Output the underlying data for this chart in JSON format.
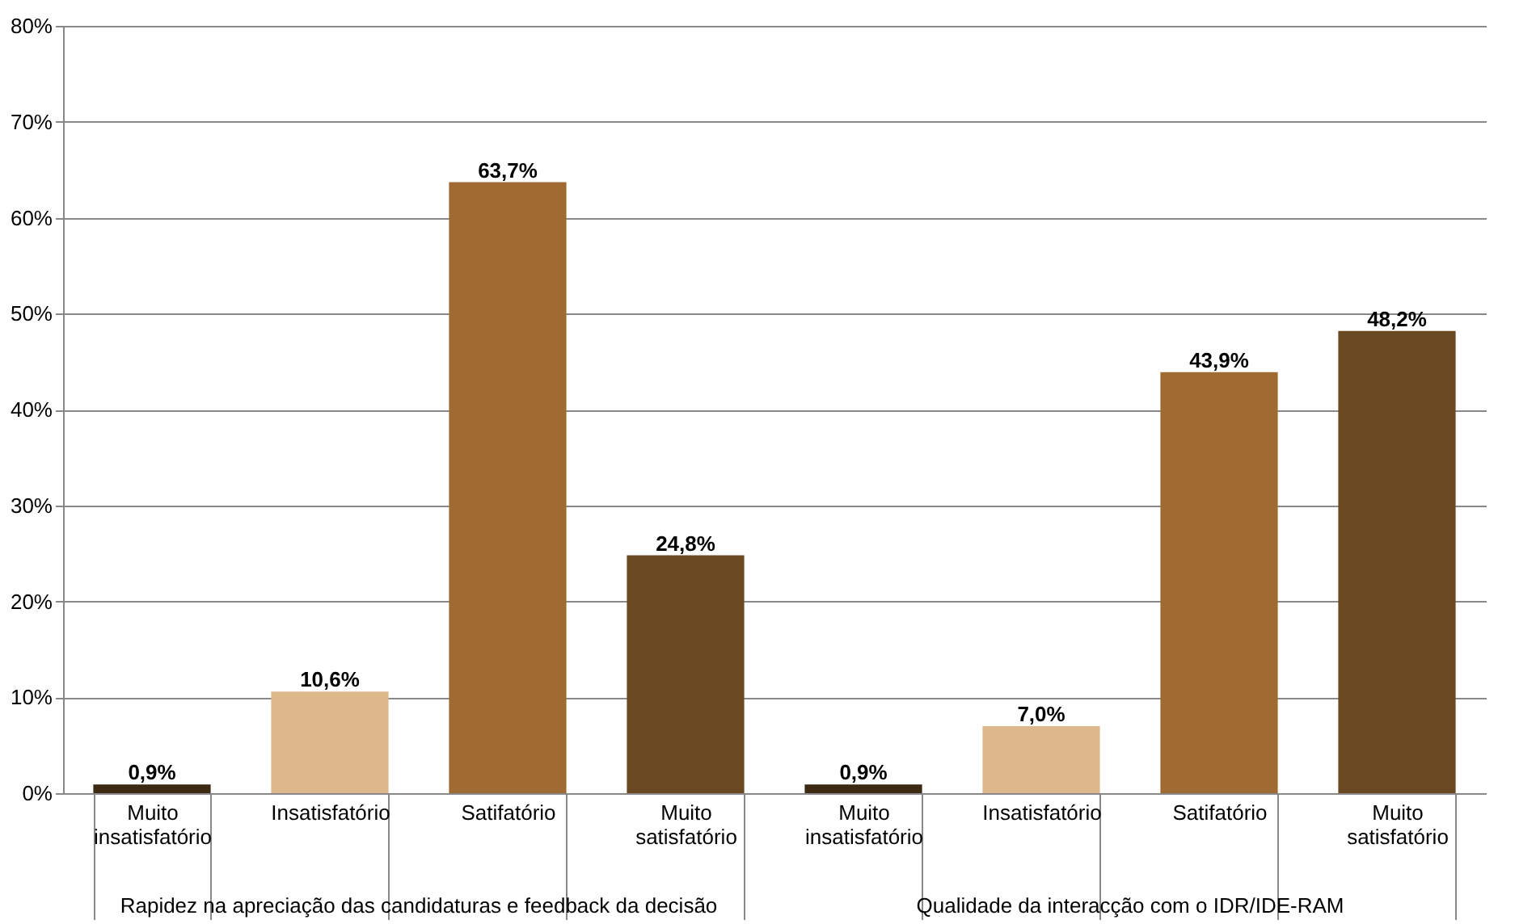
{
  "chart_data": {
    "type": "bar",
    "categories": [
      "Muito insatisfatório",
      "Insatisfatório",
      "Satifatório",
      "Muito satisfatório",
      "Muito insatisfatório",
      "Insatisfatório",
      "Satifatório",
      "Muito satisfatório"
    ],
    "values": [
      0.9,
      10.6,
      63.7,
      24.8,
      0.9,
      7.0,
      43.9,
      48.2
    ],
    "colors": [
      "#3b2914",
      "#dcb88a",
      "#9f6b33",
      "#694822",
      "#3b2914",
      "#dcb88a",
      "#9f6b33",
      "#694822"
    ],
    "value_labels": [
      "0,9%",
      "10,6%",
      "63,7%",
      "24,8%",
      "0,9%",
      "7,0%",
      "43,9%",
      "48,2%"
    ],
    "ylim": [
      0,
      80
    ],
    "yticks": [
      {
        "value": 0,
        "label": "0%"
      },
      {
        "value": 10,
        "label": "10%"
      },
      {
        "value": 20,
        "label": "20%"
      },
      {
        "value": 30,
        "label": "30%"
      },
      {
        "value": 40,
        "label": "40%"
      },
      {
        "value": 50,
        "label": "50%"
      },
      {
        "value": 60,
        "label": "60%"
      },
      {
        "value": 70,
        "label": "70%"
      },
      {
        "value": 80,
        "label": "80%"
      }
    ],
    "grid": "y",
    "annotations": [
      "Rapidez na apreciação das candidaturas e feedback da decisão",
      "Qualidade da interacção com o IDR/IDE-RAM"
    ]
  }
}
